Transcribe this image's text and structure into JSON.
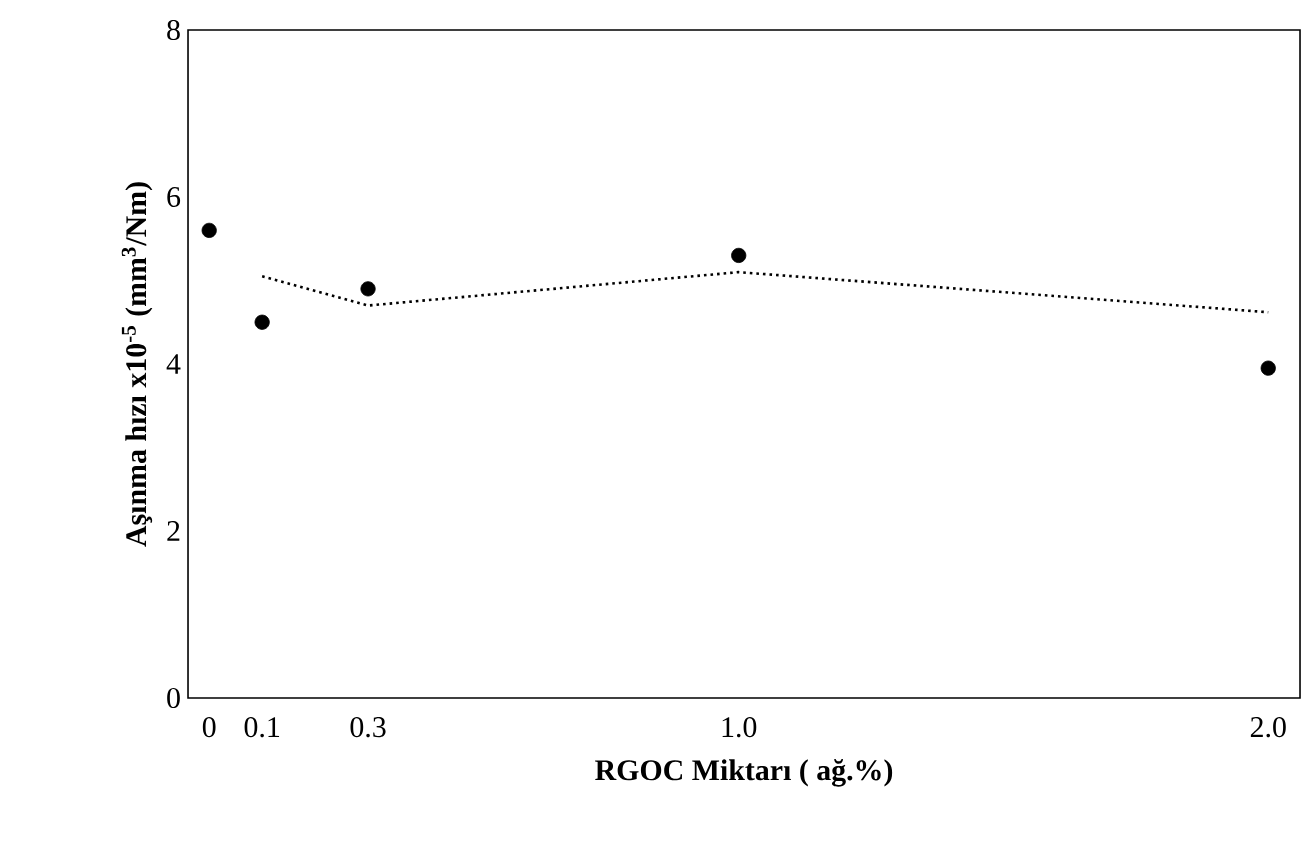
{
  "chart_data": {
    "type": "scatter",
    "xlabel": "RGOC  Miktarı ( ağ.%)",
    "ylabel": "Aşınma hızı x10$^{-5}$ (mm$^{3}$/Nm)",
    "series": [
      {
        "color": "#000000",
        "marker": "circle",
        "x": [
          0,
          0.1,
          0.3,
          1.0,
          2.0
        ],
        "values": [
          5.6,
          4.5,
          4.9,
          5.3,
          3.95
        ]
      },
      {
        "type": "line",
        "color": "#000000",
        "line_style": "dotted",
        "marker": "none",
        "x": [
          0.1,
          0.3,
          1.0,
          2.0
        ],
        "values": [
          5.05,
          4.7,
          5.1,
          4.62
        ]
      }
    ],
    "xlim": [
      -0.04,
      2.06
    ],
    "ylim": [
      0,
      8
    ],
    "xticks": [
      0,
      0.1,
      0.3,
      {
        "value": 1.0,
        "label": "1.0"
      },
      {
        "value": 2.0,
        "label": "2.0"
      }
    ],
    "yticks": [
      0,
      2,
      4,
      6,
      8
    ]
  }
}
